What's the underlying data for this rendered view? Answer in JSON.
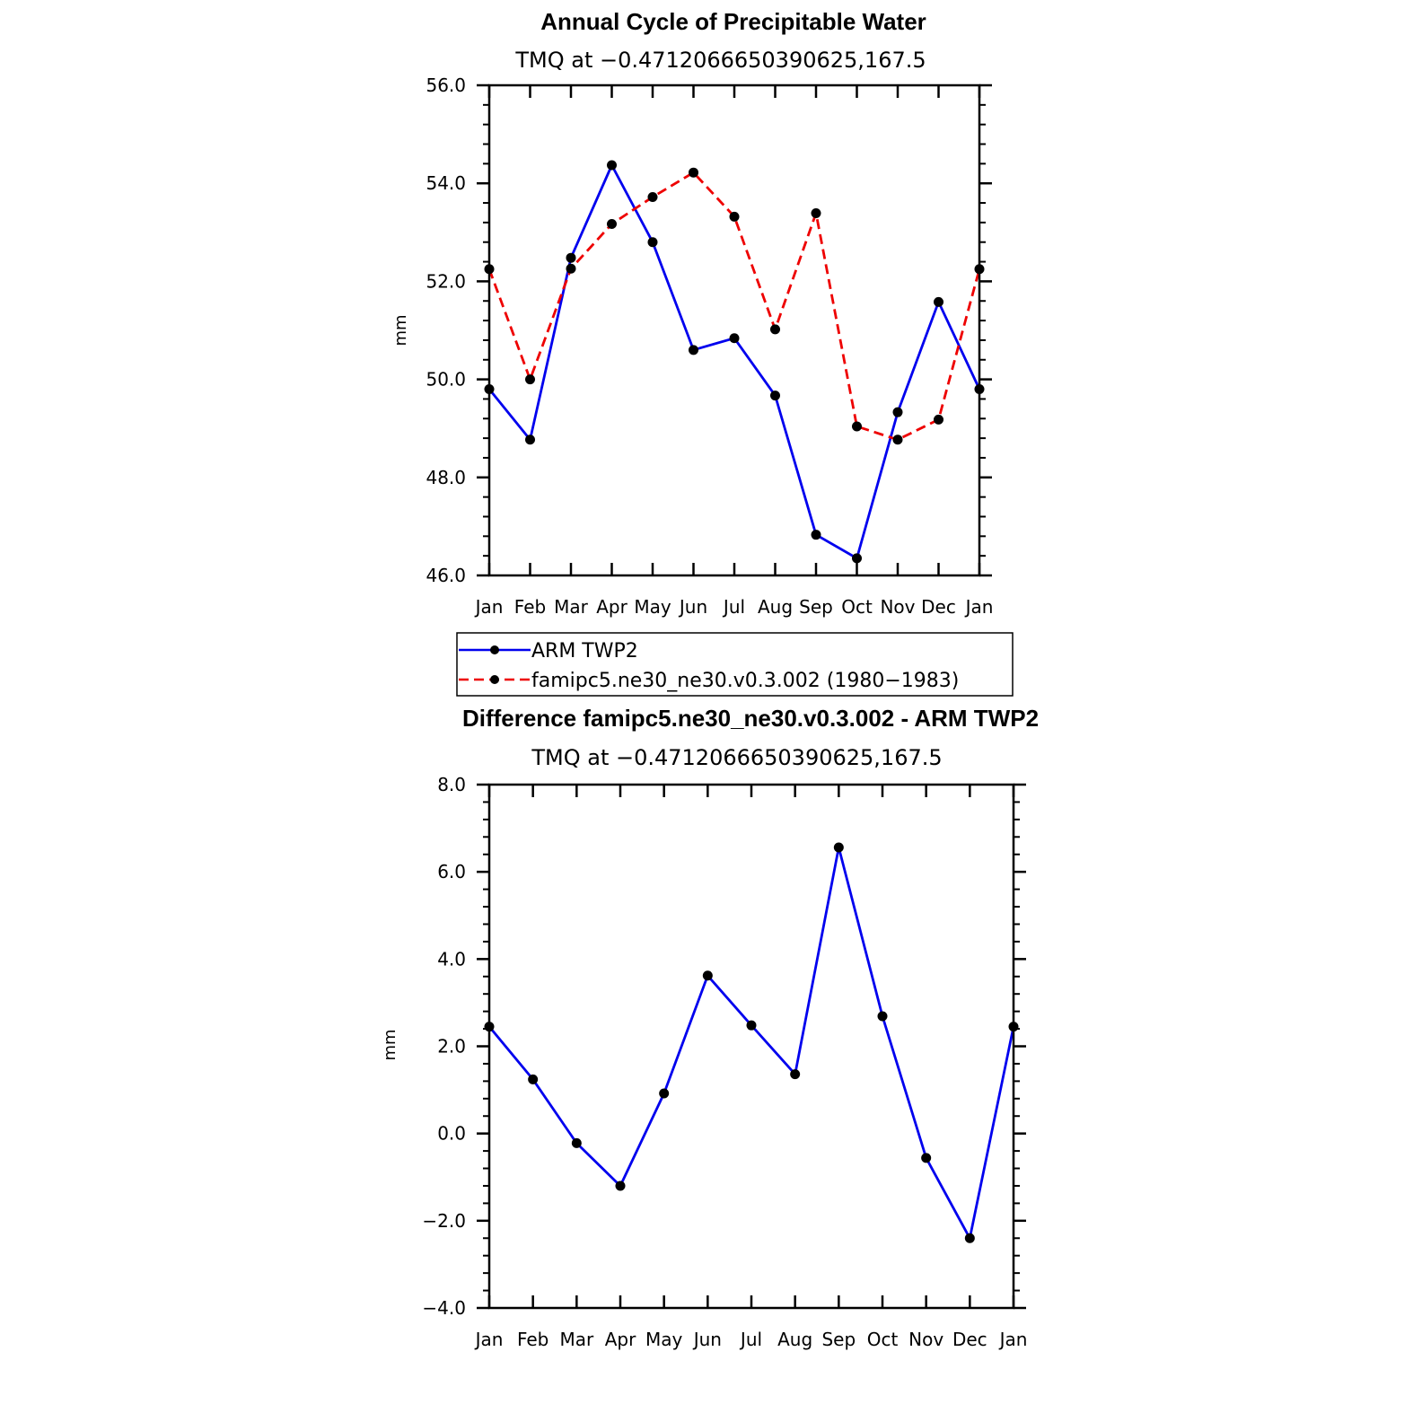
{
  "chart_data": [
    {
      "type": "line",
      "title": "Annual Cycle of Precipitable Water",
      "subtitle": "TMQ at −0.4712066650390625,167.5",
      "xlabel": "",
      "ylabel": "mm",
      "categories": [
        "Jan",
        "Feb",
        "Mar",
        "Apr",
        "May",
        "Jun",
        "Jul",
        "Aug",
        "Sep",
        "Oct",
        "Nov",
        "Dec",
        "Jan"
      ],
      "ylim": [
        46.0,
        56.0
      ],
      "yticks": [
        46.0,
        48.0,
        50.0,
        52.0,
        54.0,
        56.0
      ],
      "ytick_labels": [
        "46.0",
        "48.0",
        "50.0",
        "52.0",
        "54.0",
        "56.0"
      ],
      "series": [
        {
          "name": "ARM TWP2",
          "color": "#0000ee",
          "dash": "solid",
          "values": [
            49.8,
            48.77,
            52.48,
            54.37,
            52.8,
            50.6,
            50.84,
            49.67,
            46.83,
            46.35,
            49.33,
            51.58,
            49.8
          ]
        },
        {
          "name": "famipc5.ne30_ne30.v0.3.002 (1980−1983)",
          "color": "#ee0000",
          "dash": "dashed",
          "values": [
            52.25,
            50.0,
            52.26,
            53.17,
            53.72,
            54.22,
            53.32,
            51.02,
            53.39,
            49.04,
            48.77,
            49.18,
            52.25
          ]
        }
      ],
      "legend": {
        "placement": "bottom",
        "entries": [
          "ARM TWP2",
          "famipc5.ne30_ne30.v0.3.002 (1980−1983)"
        ]
      }
    },
    {
      "type": "line",
      "title": "Difference famipc5.ne30_ne30.v0.3.002 - ARM TWP2",
      "subtitle": "TMQ at −0.4712066650390625,167.5",
      "xlabel": "",
      "ylabel": "mm",
      "categories": [
        "Jan",
        "Feb",
        "Mar",
        "Apr",
        "May",
        "Jun",
        "Jul",
        "Aug",
        "Sep",
        "Oct",
        "Nov",
        "Dec",
        "Jan"
      ],
      "ylim": [
        -4.0,
        8.0
      ],
      "yticks": [
        -4.0,
        -2.0,
        0.0,
        2.0,
        4.0,
        6.0,
        8.0
      ],
      "ytick_labels": [
        "−4.0",
        "−2.0",
        "0.0",
        "2.0",
        "4.0",
        "6.0",
        "8.0"
      ],
      "series": [
        {
          "name": "Difference",
          "color": "#0000ee",
          "dash": "solid",
          "values": [
            2.45,
            1.24,
            -0.22,
            -1.2,
            0.92,
            3.62,
            2.48,
            1.36,
            6.56,
            2.69,
            -0.56,
            -2.4,
            2.45
          ]
        }
      ]
    }
  ]
}
